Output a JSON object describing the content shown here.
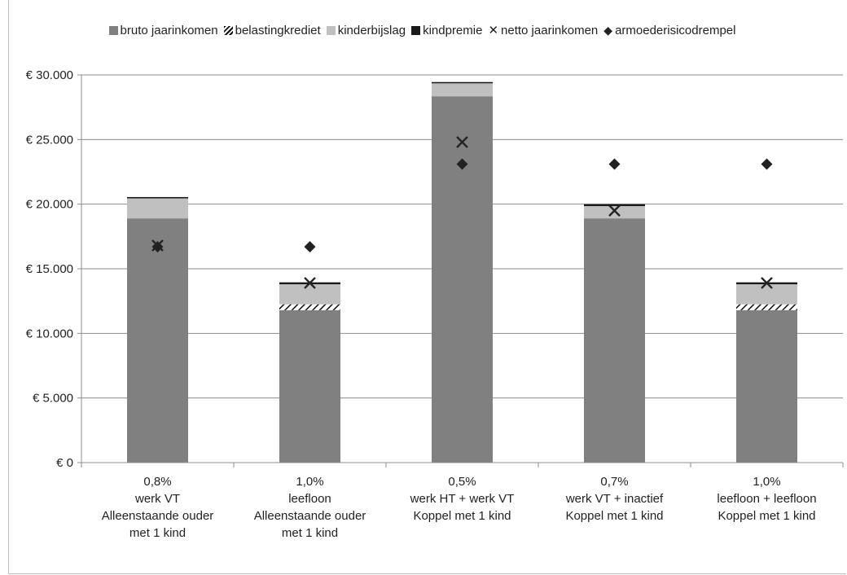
{
  "chart_data": {
    "type": "bar",
    "stacked": true,
    "legend_position": "top",
    "grid": true,
    "colors": {
      "bruto jaarinkomen": "#808080",
      "belastingkrediet": "#ffffff",
      "kinderbijslag": "#c0c0c0",
      "kindpremie": "#1a1a1a",
      "netto jaarinkomen": "#222222",
      "armoederisicodrempel": "#222222"
    },
    "legend": [
      {
        "label": "bruto jaarinkomen",
        "marker": "solid-square",
        "color": "#808080"
      },
      {
        "label": "belastingkrediet",
        "marker": "hatched-square",
        "color": "#ffffff"
      },
      {
        "label": "kinderbijslag",
        "marker": "solid-square",
        "color": "#c0c0c0"
      },
      {
        "label": "kindpremie",
        "marker": "solid-square",
        "color": "#1a1a1a"
      },
      {
        "label": "netto jaarinkomen",
        "marker": "cross"
      },
      {
        "label": "armoederisicodrempel",
        "marker": "diamond"
      }
    ],
    "categories": [
      [
        "0,8%",
        "werk VT",
        "Alleenstaande ouder",
        "met 1 kind"
      ],
      [
        "1,0%",
        "leefloon",
        "Alleenstaande ouder",
        "met 1 kind"
      ],
      [
        "0,5%",
        "werk HT + werk VT",
        "Koppel met 1 kind"
      ],
      [
        "0,7%",
        "werk VT + inactief",
        "Koppel met 1 kind"
      ],
      [
        "1,0%",
        "leefloon + leefloon",
        "Koppel met 1 kind"
      ]
    ],
    "series": [
      {
        "name": "bruto jaarinkomen",
        "kind": "bar",
        "values": [
          18900,
          11800,
          28350,
          18900,
          11800
        ]
      },
      {
        "name": "belastingkrediet",
        "kind": "bar",
        "values": [
          0,
          450,
          0,
          0,
          450
        ]
      },
      {
        "name": "kinderbijslag",
        "kind": "bar",
        "values": [
          1550,
          1550,
          1000,
          950,
          1550
        ]
      },
      {
        "name": "kindpremie",
        "kind": "bar",
        "values": [
          100,
          150,
          100,
          150,
          150
        ]
      },
      {
        "name": "netto jaarinkomen",
        "kind": "marker",
        "values": [
          16800,
          13900,
          24800,
          19500,
          13900
        ]
      },
      {
        "name": "armoederisicodrempel",
        "kind": "marker",
        "values": [
          16700,
          16700,
          23100,
          23100,
          23100
        ]
      }
    ],
    "yticks": [
      "€ 0",
      "€ 5.000",
      "€ 10.000",
      "€ 15.000",
      "€ 20.000",
      "€ 25.000",
      "€ 30.000"
    ],
    "ytick_values": [
      0,
      5000,
      10000,
      15000,
      20000,
      25000,
      30000
    ],
    "ylim": [
      0,
      30000
    ]
  }
}
